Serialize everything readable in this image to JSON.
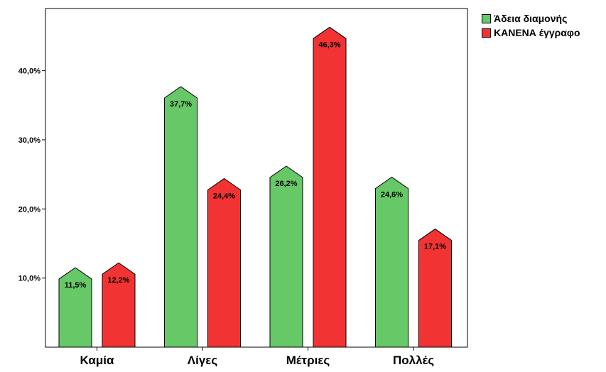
{
  "chart_data": {
    "type": "bar",
    "categories": [
      "Καμία",
      "Λίγες",
      "Μέτριες",
      "Πολλές"
    ],
    "series": [
      {
        "name": "Άδεια διαμονής",
        "values": [
          11.5,
          37.7,
          26.2,
          24.6
        ],
        "labels": [
          "11,5%",
          "37,7%",
          "26,2%",
          "24,6%"
        ],
        "color": "#66c866"
      },
      {
        "name": "ΚΑΝΕΝΑ έγγραφο",
        "values": [
          12.2,
          24.4,
          46.3,
          17.1
        ],
        "labels": [
          "12,2%",
          "24,4%",
          "46,3%",
          "17,1%"
        ],
        "color": "#f23333"
      }
    ],
    "yticks": [
      10,
      20,
      30,
      40
    ],
    "ytick_labels": [
      "10,0%",
      "20,0%",
      "30,0%",
      "40,0%"
    ],
    "ylim": [
      0,
      49
    ],
    "bar_shape": "arrow-top",
    "legend_position": "top-right",
    "grid": false
  }
}
